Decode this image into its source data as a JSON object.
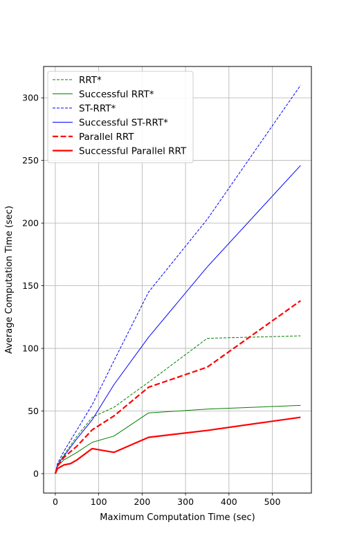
{
  "chart_data": {
    "type": "line",
    "xlabel": "Maximum Computation Time (sec)",
    "ylabel": "Average Computation Time (sec)",
    "xlim": [
      -27,
      590
    ],
    "ylim": [
      -15.5,
      325
    ],
    "xticks": [
      0,
      100,
      200,
      300,
      400,
      500
    ],
    "yticks": [
      0,
      50,
      100,
      150,
      200,
      250,
      300
    ],
    "xtick_labels": [
      "0",
      "100",
      "200",
      "300",
      "400",
      "500"
    ],
    "ytick_labels": [
      "0",
      "50",
      "100",
      "150",
      "200",
      "250",
      "300"
    ],
    "grid": true,
    "legend_position": "top-left",
    "series": [
      {
        "name": "RRT*",
        "color": "#008000",
        "style": "dashed",
        "width": 1,
        "x": [
          0,
          5,
          20,
          50,
          85,
          135,
          215,
          350,
          565
        ],
        "y": [
          0,
          7,
          15,
          30,
          45,
          53,
          73,
          108,
          110
        ]
      },
      {
        "name": "Successful RRT*",
        "color": "#008000",
        "style": "solid",
        "width": 1,
        "x": [
          0,
          5,
          20,
          50,
          85,
          135,
          215,
          350,
          565
        ],
        "y": [
          0,
          6,
          11,
          17,
          25,
          30,
          48.5,
          51.5,
          54.5
        ]
      },
      {
        "name": "ST-RRT*",
        "color": "#0000ff",
        "style": "dashed",
        "width": 1,
        "x": [
          0,
          5,
          20,
          50,
          85,
          135,
          215,
          350,
          565
        ],
        "y": [
          0,
          8,
          18,
          35,
          55,
          90,
          145,
          203,
          310
        ]
      },
      {
        "name": "Successful ST-RRT*",
        "color": "#0000ff",
        "style": "solid",
        "width": 1,
        "x": [
          0,
          5,
          20,
          50,
          85,
          135,
          215,
          350,
          565
        ],
        "y": [
          0,
          7,
          14,
          28,
          43,
          71,
          109,
          165,
          246
        ]
      },
      {
        "name": "Parallel RRT",
        "color": "#ff0000",
        "style": "dashed",
        "width": 2.2,
        "x": [
          0,
          5,
          20,
          50,
          85,
          135,
          215,
          350,
          565
        ],
        "y": [
          0,
          6,
          13,
          22,
          35,
          46,
          69,
          85,
          138
        ]
      },
      {
        "name": "Successful Parallel RRT",
        "color": "#ff0000",
        "style": "solid",
        "width": 2.2,
        "x": [
          0,
          5,
          20,
          35,
          50,
          85,
          135,
          215,
          350,
          565
        ],
        "y": [
          0,
          4,
          7,
          8,
          11,
          20,
          17,
          29,
          34.5,
          45
        ]
      }
    ]
  }
}
